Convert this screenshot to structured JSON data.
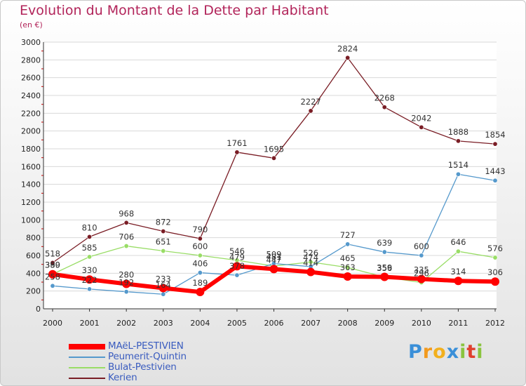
{
  "chart_data": {
    "type": "line",
    "title": "Evolution du Montant de la Dette par Habitant",
    "subtitle": "(en €)",
    "x": [
      "2000",
      "2001",
      "2002",
      "2003",
      "2004",
      "2005",
      "2006",
      "2007",
      "2008",
      "2009",
      "2010",
      "2011",
      "2012"
    ],
    "ylim": [
      0,
      3000
    ],
    "yticks": [
      0,
      200,
      400,
      600,
      800,
      1000,
      1200,
      1400,
      1600,
      1800,
      2000,
      2200,
      2400,
      2600,
      2800,
      3000
    ],
    "grid": "horizontal",
    "legend_position": "bottom-left",
    "series": [
      {
        "name": "Kerien",
        "color": "#7a1d25",
        "width": 1.3,
        "values": [
          518,
          810,
          968,
          872,
          790,
          1761,
          1695,
          2227,
          2824,
          2268,
          2042,
          1888,
          1854
        ]
      },
      {
        "name": "Bulat-Pestivien",
        "color": "#99dd66",
        "width": 1.3,
        "values": [
          390,
          585,
          706,
          651,
          600,
          546,
          481,
          526,
          465,
          356,
          296,
          646,
          576
        ]
      },
      {
        "name": "Peumerit-Quintin",
        "color": "#5599cc",
        "width": 1.3,
        "values": [
          258,
          222,
          192,
          164,
          406,
          378,
          509,
          474,
          727,
          639,
          600,
          1514,
          1443
        ]
      },
      {
        "name": "MAëL-PESTIVIEN",
        "color": "#ff0000",
        "width": 6,
        "values": [
          389,
          330,
          280,
          233,
          189,
          479,
          447,
          414,
          363,
          359,
          335,
          314,
          306
        ]
      }
    ],
    "legend_order": [
      "MAëL-PESTIVIEN",
      "Peumerit-Quintin",
      "Bulat-Pestivien",
      "Kerien"
    ]
  },
  "logo": {
    "letters": [
      "P",
      "r",
      "o",
      "x",
      "i",
      "t",
      "i"
    ],
    "colors": [
      "#3a8fd8",
      "#f29a1e",
      "#f2b01e",
      "#3a8fd8",
      "#8ac43f",
      "#e0402f",
      "#8ac43f"
    ]
  }
}
